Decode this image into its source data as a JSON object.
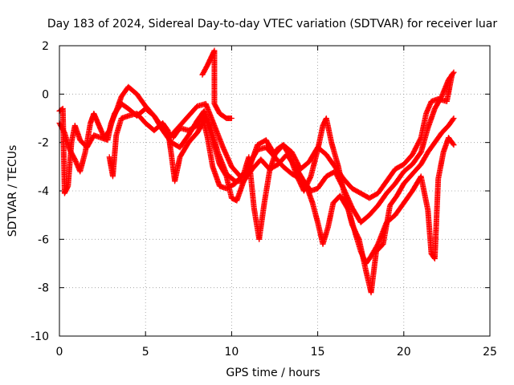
{
  "chart_data": {
    "type": "scatter",
    "title": "Day 183 of 2024, Sidereal Day-to-day VTEC variation (SDTVAR) for receiver luar",
    "xlabel": "GPS time / hours",
    "ylabel": "SDTVAR / TECUs",
    "xlim": [
      0,
      25
    ],
    "ylim": [
      -10,
      2
    ],
    "xticks": [
      0,
      5,
      10,
      15,
      20,
      25
    ],
    "yticks": [
      -10,
      -8,
      -6,
      -4,
      -2,
      0,
      2
    ],
    "xtick_labels": [
      "0",
      "5",
      "10",
      "15",
      "20",
      "25"
    ],
    "ytick_labels": [
      "-10",
      "-8",
      "-6",
      "-4",
      "-2",
      "0",
      "2"
    ],
    "grid": true,
    "marker": "+",
    "color": "#ff0000",
    "series": [
      {
        "points": [
          [
            0.0,
            -0.7
          ],
          [
            0.2,
            -0.6
          ],
          [
            0.3,
            -4.1
          ],
          [
            0.5,
            -3.8
          ],
          [
            0.7,
            -2.0
          ],
          [
            0.9,
            -1.3
          ],
          [
            1.2,
            -1.9
          ],
          [
            1.6,
            -2.2
          ],
          [
            2.0,
            -1.7
          ],
          [
            2.4,
            -1.8
          ],
          [
            2.8,
            -1.9
          ],
          [
            3.0,
            -1.2
          ],
          [
            3.3,
            -0.7
          ],
          [
            3.6,
            -0.1
          ],
          [
            4.0,
            0.3
          ],
          [
            4.5,
            0.0
          ],
          [
            5.0,
            -0.5
          ],
          [
            5.5,
            -0.9
          ],
          [
            6.0,
            -1.4
          ],
          [
            6.5,
            -1.7
          ],
          [
            7.0,
            -1.3
          ],
          [
            7.5,
            -0.9
          ],
          [
            8.0,
            -0.5
          ],
          [
            8.5,
            -0.4
          ],
          [
            9.0,
            -1.3
          ],
          [
            9.5,
            -2.2
          ],
          [
            10.0,
            -3.0
          ],
          [
            10.5,
            -3.4
          ],
          [
            11.0,
            -3.1
          ],
          [
            11.5,
            -2.1
          ],
          [
            12.0,
            -1.9
          ],
          [
            12.5,
            -2.5
          ],
          [
            13.0,
            -2.1
          ],
          [
            13.5,
            -2.4
          ],
          [
            14.0,
            -3.1
          ],
          [
            14.5,
            -2.8
          ],
          [
            15.0,
            -2.2
          ],
          [
            15.5,
            -2.5
          ],
          [
            16.0,
            -3.0
          ],
          [
            16.5,
            -3.5
          ],
          [
            17.0,
            -3.9
          ],
          [
            17.5,
            -4.1
          ],
          [
            18.0,
            -4.3
          ],
          [
            18.5,
            -4.1
          ],
          [
            19.0,
            -3.6
          ],
          [
            19.5,
            -3.1
          ],
          [
            20.0,
            -2.9
          ],
          [
            20.5,
            -2.5
          ],
          [
            21.0,
            -1.8
          ],
          [
            21.3,
            -0.8
          ],
          [
            21.6,
            -0.3
          ],
          [
            22.0,
            -0.2
          ],
          [
            22.5,
            -0.3
          ],
          [
            22.8,
            0.8
          ]
        ]
      },
      {
        "points": [
          [
            0.0,
            -1.2
          ],
          [
            0.3,
            -1.6
          ],
          [
            0.6,
            -2.3
          ],
          [
            0.9,
            -2.7
          ],
          [
            1.2,
            -3.2
          ],
          [
            1.5,
            -2.4
          ],
          [
            1.8,
            -1.2
          ],
          [
            2.0,
            -0.8
          ],
          [
            2.3,
            -1.3
          ],
          [
            2.6,
            -1.8
          ],
          [
            2.9,
            -1.5
          ],
          [
            3.2,
            -0.8
          ],
          [
            3.6,
            -0.4
          ],
          [
            4.0,
            -0.6
          ],
          [
            4.5,
            -0.9
          ],
          [
            5.0,
            -0.6
          ],
          [
            5.5,
            -0.9
          ],
          [
            6.0,
            -1.5
          ],
          [
            6.5,
            -2.0
          ],
          [
            7.0,
            -2.2
          ],
          [
            7.5,
            -1.7
          ],
          [
            8.0,
            -1.1
          ],
          [
            8.4,
            -0.7
          ],
          [
            8.8,
            -1.4
          ],
          [
            9.2,
            -2.4
          ],
          [
            9.7,
            -3.3
          ],
          [
            10.2,
            -3.6
          ],
          [
            10.7,
            -3.6
          ],
          [
            11.2,
            -3.1
          ],
          [
            11.7,
            -2.7
          ],
          [
            12.2,
            -3.1
          ],
          [
            12.7,
            -2.9
          ],
          [
            13.2,
            -2.5
          ],
          [
            13.7,
            -3.0
          ],
          [
            14.2,
            -3.6
          ],
          [
            14.6,
            -4.0
          ],
          [
            15.0,
            -3.9
          ],
          [
            15.5,
            -3.4
          ],
          [
            16.0,
            -3.2
          ],
          [
            16.5,
            -3.9
          ],
          [
            17.0,
            -4.7
          ],
          [
            17.5,
            -5.3
          ],
          [
            18.0,
            -5.0
          ],
          [
            18.5,
            -4.6
          ],
          [
            19.0,
            -4.1
          ],
          [
            19.5,
            -3.7
          ],
          [
            20.0,
            -3.2
          ],
          [
            20.5,
            -2.9
          ],
          [
            21.0,
            -2.4
          ],
          [
            21.4,
            -1.4
          ],
          [
            21.8,
            -0.6
          ],
          [
            22.2,
            -0.1
          ],
          [
            22.6,
            0.6
          ],
          [
            22.9,
            0.9
          ]
        ]
      },
      {
        "points": [
          [
            2.9,
            -2.6
          ],
          [
            3.1,
            -3.4
          ],
          [
            3.3,
            -1.7
          ],
          [
            3.6,
            -1.0
          ],
          [
            4.0,
            -0.9
          ],
          [
            4.5,
            -0.8
          ],
          [
            5.0,
            -1.2
          ],
          [
            5.5,
            -1.5
          ],
          [
            6.0,
            -1.2
          ],
          [
            6.3,
            -1.5
          ],
          [
            6.5,
            -2.5
          ],
          [
            6.7,
            -3.6
          ],
          [
            7.0,
            -2.6
          ],
          [
            7.5,
            -2.0
          ],
          [
            8.0,
            -1.6
          ],
          [
            8.5,
            -1.0
          ],
          [
            8.9,
            -1.9
          ],
          [
            9.3,
            -2.9
          ],
          [
            9.7,
            -3.4
          ],
          [
            10.0,
            -4.3
          ],
          [
            10.3,
            -4.4
          ],
          [
            10.7,
            -3.6
          ],
          [
            11.1,
            -2.8
          ],
          [
            11.5,
            -2.3
          ],
          [
            12.0,
            -2.2
          ],
          [
            12.5,
            -2.6
          ],
          [
            13.0,
            -3.0
          ],
          [
            13.5,
            -3.3
          ],
          [
            14.0,
            -3.5
          ],
          [
            14.4,
            -3.9
          ],
          [
            14.7,
            -4.5
          ],
          [
            15.0,
            -5.3
          ],
          [
            15.3,
            -6.2
          ],
          [
            15.6,
            -5.5
          ],
          [
            15.9,
            -4.5
          ],
          [
            16.3,
            -4.2
          ],
          [
            16.8,
            -4.8
          ],
          [
            17.2,
            -5.8
          ],
          [
            17.5,
            -6.5
          ],
          [
            17.8,
            -7.0
          ],
          [
            18.1,
            -6.7
          ],
          [
            18.5,
            -6.2
          ],
          [
            19.0,
            -5.3
          ],
          [
            19.5,
            -5.0
          ],
          [
            20.0,
            -4.5
          ],
          [
            20.5,
            -4.0
          ],
          [
            21.0,
            -3.4
          ],
          [
            21.4,
            -4.8
          ],
          [
            21.6,
            -6.6
          ],
          [
            21.8,
            -6.8
          ],
          [
            22.0,
            -3.5
          ],
          [
            22.3,
            -2.4
          ],
          [
            22.6,
            -1.8
          ],
          [
            22.9,
            -2.1
          ]
        ]
      },
      {
        "points": [
          [
            6.6,
            -1.8
          ],
          [
            7.0,
            -1.4
          ],
          [
            7.5,
            -1.5
          ],
          [
            8.0,
            -1.3
          ],
          [
            8.3,
            -0.9
          ],
          [
            8.6,
            -1.8
          ],
          [
            8.9,
            -3.0
          ],
          [
            9.3,
            -3.8
          ],
          [
            9.7,
            -3.9
          ],
          [
            10.2,
            -3.7
          ],
          [
            10.7,
            -3.3
          ],
          [
            11.0,
            -2.6
          ],
          [
            11.3,
            -4.7
          ],
          [
            11.6,
            -6.0
          ],
          [
            11.9,
            -4.5
          ],
          [
            12.2,
            -3.2
          ],
          [
            12.6,
            -2.3
          ],
          [
            13.0,
            -2.1
          ],
          [
            13.4,
            -2.6
          ],
          [
            13.8,
            -3.4
          ],
          [
            14.2,
            -4.0
          ],
          [
            14.6,
            -3.4
          ],
          [
            15.0,
            -2.3
          ],
          [
            15.3,
            -1.3
          ],
          [
            15.5,
            -1.0
          ],
          [
            15.8,
            -2.0
          ],
          [
            16.2,
            -3.0
          ],
          [
            16.6,
            -4.3
          ],
          [
            17.0,
            -5.4
          ],
          [
            17.4,
            -6.0
          ],
          [
            17.8,
            -7.3
          ],
          [
            18.1,
            -8.2
          ],
          [
            18.4,
            -6.5
          ],
          [
            18.8,
            -6.2
          ],
          [
            19.2,
            -4.6
          ],
          [
            19.6,
            -4.2
          ],
          [
            20.0,
            -3.7
          ],
          [
            20.5,
            -3.3
          ],
          [
            21.0,
            -2.9
          ],
          [
            21.4,
            -2.4
          ],
          [
            21.8,
            -2.0
          ],
          [
            22.2,
            -1.6
          ],
          [
            22.6,
            -1.3
          ],
          [
            22.9,
            -1.0
          ]
        ]
      },
      {
        "points": [
          [
            8.3,
            0.8
          ],
          [
            8.6,
            1.2
          ],
          [
            8.8,
            1.5
          ],
          [
            9.0,
            1.8
          ],
          [
            9.0,
            -0.4
          ],
          [
            9.3,
            -0.8
          ],
          [
            9.7,
            -1.0
          ],
          [
            10.0,
            -1.0
          ]
        ]
      }
    ]
  }
}
